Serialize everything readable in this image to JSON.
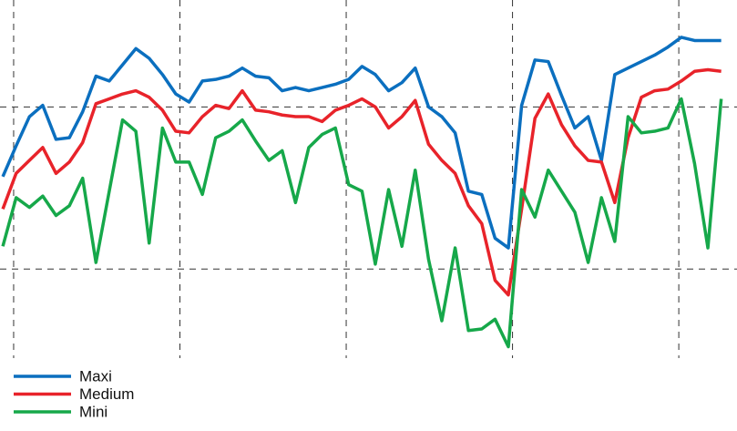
{
  "chart_data": {
    "type": "line",
    "x": [
      -0.65,
      0.15,
      0.95,
      1.75,
      2.55,
      3.35,
      4.15,
      4.95,
      5.75,
      6.55,
      7.35,
      8.15,
      8.95,
      9.75,
      10.55,
      11.35,
      12.15,
      12.95,
      13.75,
      14.55,
      15.35,
      16.15,
      16.95,
      17.75,
      18.55,
      19.35,
      20.15,
      20.95,
      21.75,
      22.55,
      23.35,
      24.15,
      24.95,
      25.75,
      26.55,
      27.35,
      28.15,
      28.95,
      29.75,
      30.55,
      31.35,
      32.15,
      32.95,
      33.75,
      34.55,
      35.35,
      36.15,
      36.95,
      37.75,
      38.55,
      39.35,
      40.15,
      40.95,
      41.75,
      42.55
    ],
    "series": [
      {
        "name": "Maxi",
        "color": "#0b6fbf",
        "values": [
          57,
          76,
          94,
          101,
          80,
          81,
          97,
          119,
          116,
          126,
          136,
          130,
          120,
          108,
          103,
          116,
          117,
          119,
          124,
          119,
          118,
          110,
          112,
          110,
          112,
          114,
          117,
          125,
          120,
          110,
          115,
          124,
          100,
          94,
          84,
          48,
          46,
          19,
          13,
          101,
          129,
          128,
          107,
          87,
          94,
          67,
          120,
          124,
          128,
          132,
          137,
          143,
          141,
          141,
          141
        ]
      },
      {
        "name": "Medium",
        "color": "#e8232a",
        "values": [
          37,
          59,
          67,
          75,
          59,
          66,
          78,
          102,
          105,
          108,
          110,
          106,
          98,
          85,
          84,
          94,
          101,
          99,
          110,
          98,
          97,
          95,
          94,
          94,
          91,
          98,
          101,
          105,
          100,
          87,
          94,
          104,
          77,
          67,
          59,
          39,
          28,
          -7,
          -16,
          37,
          93,
          108,
          89,
          76,
          67,
          66,
          41,
          81,
          106,
          110,
          111,
          116,
          122,
          123,
          122
        ]
      },
      {
        "name": "Mini",
        "color": "#16a84a",
        "values": [
          14,
          44,
          38,
          45,
          33,
          39,
          56,
          4,
          48,
          92,
          85,
          16,
          87,
          66,
          66,
          46,
          81,
          85,
          92,
          79,
          67,
          73,
          41,
          75,
          83,
          87,
          52,
          48,
          3,
          49,
          14,
          61,
          6,
          -32,
          13,
          -38,
          -37,
          -31,
          -48,
          49,
          32,
          61,
          48,
          35,
          4,
          44,
          17,
          94,
          84,
          85,
          87,
          105,
          65,
          13,
          105
        ]
      }
    ],
    "xlim": [
      -0.82,
      43.5
    ],
    "xticks": [
      0,
      10,
      20,
      30,
      40
    ],
    "ylim": [
      -55,
      166
    ],
    "yticks": [
      0,
      100
    ],
    "grid": true,
    "legend": "bottom-left"
  }
}
